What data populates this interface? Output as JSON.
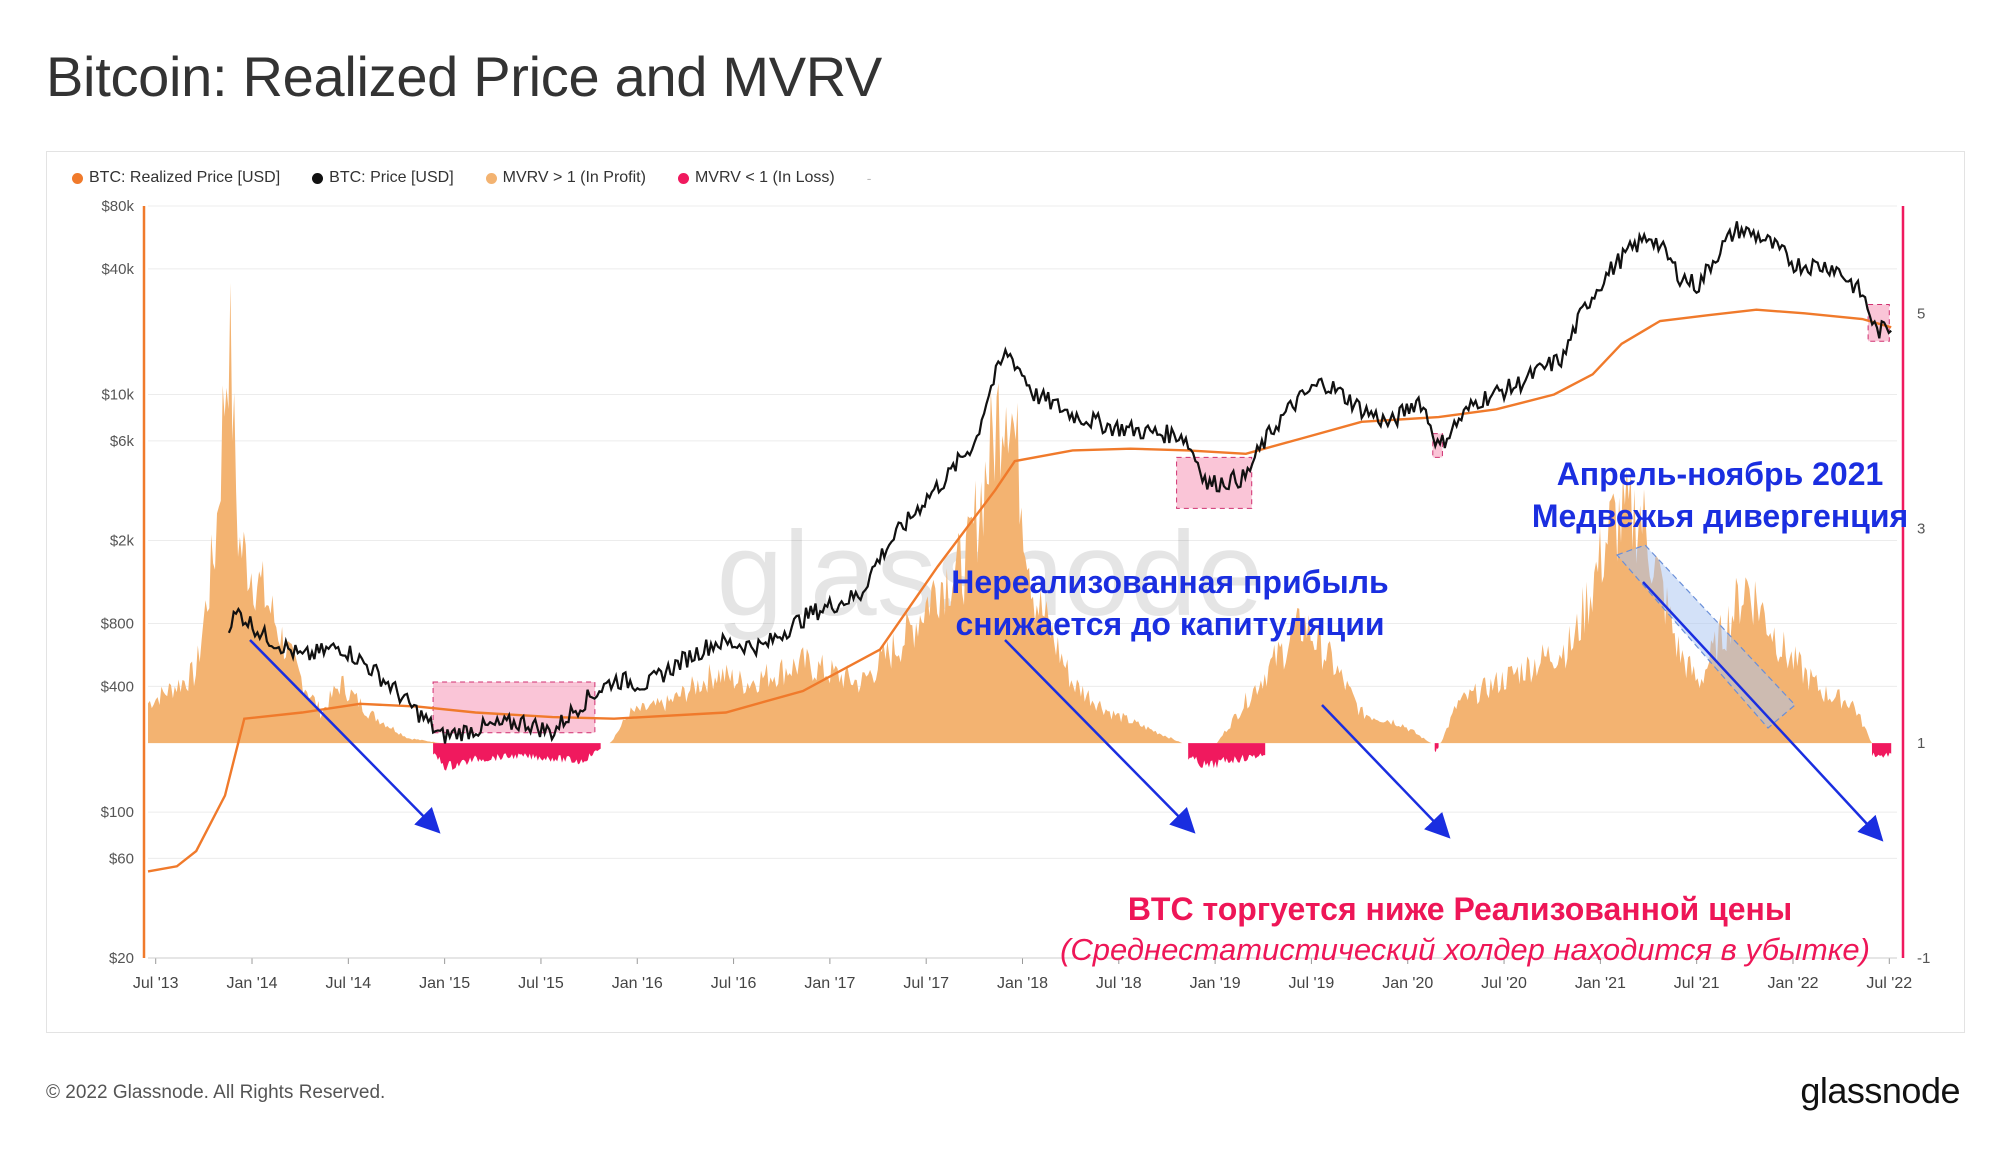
{
  "title": "Bitcoin: Realized Price and MVRV",
  "legend": [
    {
      "label": "BTC: Realized Price [USD]",
      "color": "#f07a2b"
    },
    {
      "label": "BTC: Price [USD]",
      "color": "#111111"
    },
    {
      "label": "MVRV > 1 (In Profit)",
      "color": "#f3b371"
    },
    {
      "label": "MVRV < 1 (In Loss)",
      "color": "#f0195e"
    }
  ],
  "legend_extra": "-",
  "watermark": "glassnode",
  "footer": {
    "copyright": "© 2022 Glassnode. All Rights Reserved.",
    "logo": "glassnode"
  },
  "annotations": {
    "unrealized_line1": "Нереализованная прибыль",
    "unrealized_line2": "снижается  до капитуляции",
    "divergence_line1": "Апрель-ноябрь 2021",
    "divergence_line2": "Медвежья дивергенция",
    "below_line1": "BTC торгуется ниже Реализованной цены",
    "below_line2": "(Среднестатистический холдер находится в убытке)"
  },
  "chart_data": {
    "type": "line",
    "title": "Bitcoin: Realized Price and MVRV",
    "x_ticks": [
      "Jul '13",
      "Jan '14",
      "Jul '14",
      "Jan '15",
      "Jul '15",
      "Jan '16",
      "Jul '16",
      "Jan '17",
      "Jul '17",
      "Jan '18",
      "Jul '18",
      "Jan '19",
      "Jul '19",
      "Jan '20",
      "Jul '20",
      "Jan '21",
      "Jul '21",
      "Jan '22",
      "Jul '22"
    ],
    "y_left_ticks": [
      "$20",
      "$60",
      "$100",
      "$400",
      "$800",
      "$2k",
      "$6k",
      "$10k",
      "$40k",
      "$80k"
    ],
    "y_left_tick_values": [
      20,
      60,
      100,
      400,
      800,
      2000,
      6000,
      10000,
      40000,
      80000
    ],
    "y_left_scale": "log",
    "y_right_ticks": [
      "-1",
      "1",
      "3",
      "5"
    ],
    "y_right_tick_values": [
      -1,
      1,
      3,
      5
    ],
    "y_right_range": [
      -1,
      6
    ],
    "mvrv_baseline": 1,
    "grid": true,
    "legend_position": "top-left",
    "series": [
      {
        "name": "BTC: Price [USD]",
        "color": "#111111",
        "axis": "left",
        "x": [
          2013.92,
          2013.97,
          2014.1,
          2014.3,
          2014.5,
          2014.7,
          2014.85,
          2015.02,
          2015.2,
          2015.45,
          2015.6,
          2015.8,
          2015.92,
          2016.1,
          2016.45,
          2016.7,
          2016.95,
          2017.2,
          2017.45,
          2017.65,
          2017.8,
          2017.96,
          2018.1,
          2018.3,
          2018.5,
          2018.75,
          2018.87,
          2019.0,
          2019.2,
          2019.45,
          2019.6,
          2019.8,
          2019.95,
          2020.1,
          2020.2,
          2020.4,
          2020.6,
          2020.85,
          2021.0,
          2021.15,
          2021.3,
          2021.45,
          2021.55,
          2021.75,
          2021.87,
          2022.05,
          2022.25,
          2022.4,
          2022.47,
          2022.55
        ],
        "values": [
          800,
          900,
          700,
          550,
          620,
          450,
          330,
          230,
          250,
          270,
          240,
          360,
          430,
          410,
          650,
          620,
          900,
          1100,
          2500,
          4000,
          6000,
          16000,
          10000,
          8000,
          7000,
          6500,
          6400,
          3700,
          4000,
          9000,
          11500,
          8500,
          7200,
          9500,
          5500,
          9300,
          11000,
          15000,
          30000,
          45000,
          58000,
          37000,
          33000,
          62000,
          57000,
          42000,
          41000,
          30000,
          20000,
          21000
        ]
      },
      {
        "name": "BTC: Realized Price [USD]",
        "color": "#f07a2b",
        "axis": "left",
        "x": [
          2013.5,
          2013.65,
          2013.75,
          2013.9,
          2014.0,
          2014.3,
          2014.6,
          2014.9,
          2015.2,
          2015.6,
          2015.92,
          2016.5,
          2016.9,
          2017.3,
          2017.6,
          2017.9,
          2018.0,
          2018.3,
          2018.6,
          2018.9,
          2019.2,
          2019.5,
          2019.8,
          2020.2,
          2020.5,
          2020.8,
          2021.0,
          2021.15,
          2021.35,
          2021.6,
          2021.85,
          2022.1,
          2022.4,
          2022.55
        ],
        "values": [
          52,
          55,
          65,
          120,
          280,
          300,
          330,
          320,
          300,
          285,
          280,
          300,
          380,
          600,
          1500,
          3500,
          4800,
          5400,
          5500,
          5400,
          5200,
          6200,
          7400,
          7800,
          8500,
          10000,
          12500,
          17500,
          22500,
          24000,
          25500,
          24500,
          23000,
          21000
        ]
      },
      {
        "name": "MVRV > 1 (In Profit)",
        "color": "#f3b371",
        "axis": "right",
        "x": [
          2013.5,
          2013.75,
          2013.85,
          2013.92,
          2013.97,
          2014.1,
          2014.25,
          2014.4,
          2014.5,
          2014.65,
          2014.85,
          2015.02,
          2015.6,
          2015.9,
          2016.0,
          2016.2,
          2016.45,
          2016.6,
          2016.9,
          2017.2,
          2017.45,
          2017.6,
          2017.75,
          2017.96,
          2018.1,
          2018.3,
          2018.5,
          2018.75,
          2018.87,
          2019.05,
          2019.3,
          2019.5,
          2019.65,
          2019.8,
          2020.0,
          2020.2,
          2020.3,
          2020.5,
          2020.7,
          2020.9,
          2021.1,
          2021.25,
          2021.45,
          2021.55,
          2021.8,
          2022.0,
          2022.2,
          2022.35,
          2022.45
        ],
        "values": [
          1.4,
          1.7,
          3.0,
          5.2,
          3.0,
          2.5,
          1.8,
          1.3,
          1.6,
          1.3,
          1.05,
          1.0,
          1.0,
          1.0,
          1.3,
          1.4,
          1.7,
          1.6,
          1.8,
          1.6,
          2.1,
          2.6,
          2.8,
          4.7,
          2.5,
          1.6,
          1.3,
          1.1,
          1.0,
          1.0,
          1.7,
          2.2,
          1.8,
          1.3,
          1.2,
          0.95,
          1.4,
          1.6,
          1.8,
          2.0,
          3.2,
          3.3,
          1.9,
          1.6,
          2.6,
          1.9,
          1.5,
          1.4,
          1.0
        ]
      },
      {
        "name": "MVRV < 1 (In Loss)",
        "color": "#f0195e",
        "axis": "right",
        "x": [
          2014.98,
          2015.05,
          2015.2,
          2015.4,
          2015.6,
          2015.75,
          2015.85,
          2018.9,
          2019.0,
          2019.1,
          2019.2,
          2019.3,
          2020.18,
          2020.2,
          2022.45,
          2022.5,
          2022.55
        ],
        "values": [
          0.9,
          0.78,
          0.85,
          0.88,
          0.86,
          0.83,
          0.95,
          0.87,
          0.78,
          0.84,
          0.86,
          0.9,
          0.92,
          0.96,
          0.9,
          0.88,
          0.9
        ]
      }
    ]
  }
}
